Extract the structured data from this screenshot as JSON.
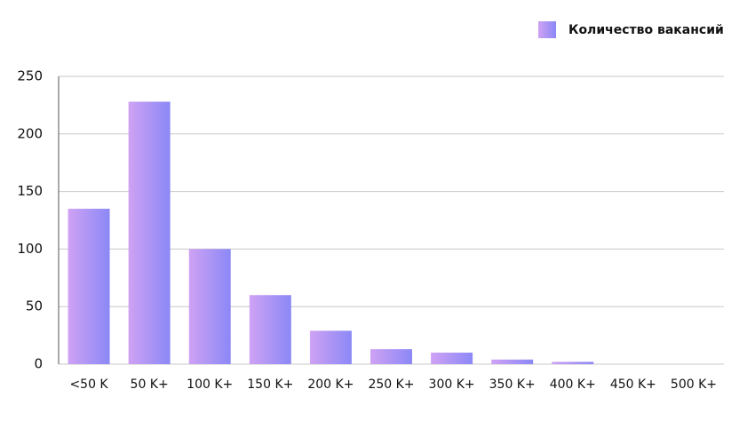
{
  "chart_data": {
    "type": "bar",
    "categories": [
      "<50 K",
      "50 K+",
      "100 K+",
      "150 K+",
      "200 K+",
      "250 K+",
      "300 K+",
      "350 K+",
      "400 K+",
      "450 K+",
      "500 K+"
    ],
    "series": [
      {
        "name": "Количество вакансий",
        "values": [
          135,
          228,
          100,
          60,
          29,
          13,
          10,
          4,
          2,
          0,
          0
        ]
      }
    ],
    "ylim": [
      0,
      250
    ],
    "yticks": [
      0,
      50,
      100,
      150,
      200,
      250
    ],
    "grid": true,
    "legend": "top-right"
  }
}
